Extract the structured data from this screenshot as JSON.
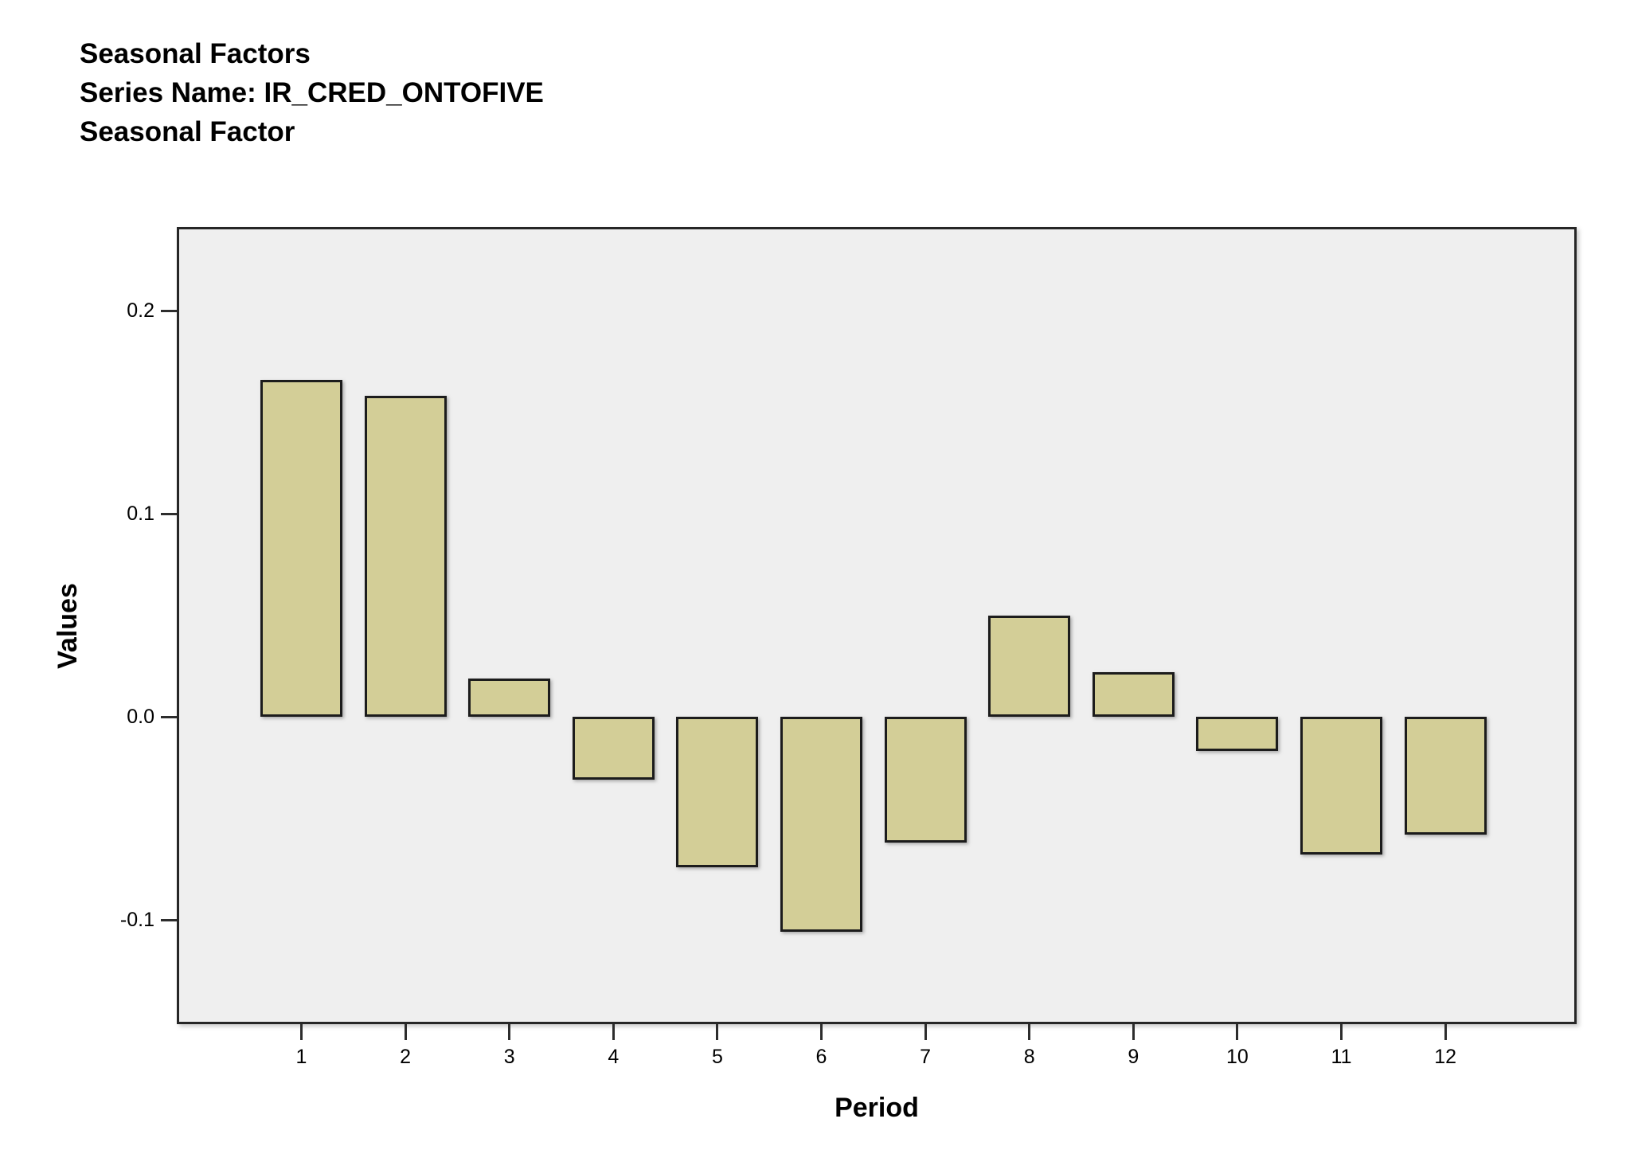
{
  "window": {
    "background": "#ffffff"
  },
  "header": {
    "title_lines": [
      "Seasonal Factors",
      "Series Name: IR_CRED_ONTOFIVE",
      "Seasonal Factor"
    ]
  },
  "chart_data": {
    "type": "bar",
    "title": "Seasonal Factors",
    "subtitle": "Series Name: IR_CRED_ONTOFIVE",
    "subtitle2": "Seasonal Factor",
    "series_name": "Seasonal Factor",
    "categories": [
      "1",
      "2",
      "3",
      "4",
      "5",
      "6",
      "7",
      "8",
      "9",
      "10",
      "11",
      "12"
    ],
    "values": [
      0.166,
      0.158,
      0.019,
      -0.031,
      -0.074,
      -0.106,
      -0.062,
      0.05,
      0.022,
      -0.017,
      -0.068,
      -0.058
    ],
    "xlabel": "Period",
    "ylabel": "Values",
    "ylim": [
      -0.15,
      0.24
    ],
    "yticks": [
      0.2,
      0.1,
      0.0,
      -0.1
    ],
    "ytick_labels": [
      "0.2",
      "0.1",
      "0.0",
      "-0.1"
    ],
    "grid": false,
    "legend": "none",
    "baseline": 0,
    "colors": {
      "bar_fill": "#D3CE97",
      "bar_border": "#1C1C1C",
      "plot_background": "#EFEFEF",
      "axis": "#262626",
      "text": "#000000",
      "page_background": "#FFFFFF"
    }
  }
}
